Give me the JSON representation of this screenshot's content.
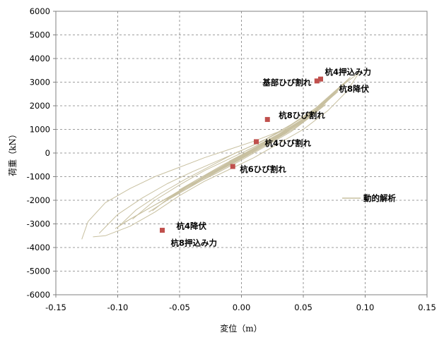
{
  "chart_data": {
    "type": "line",
    "xlabel": "変位（m）",
    "ylabel": "荷重（kN）",
    "xlim": [
      -0.15,
      0.15
    ],
    "ylim": [
      -6000,
      6000
    ],
    "x_ticks": [
      -0.15,
      -0.1,
      -0.05,
      0.0,
      0.05,
      0.1,
      0.15
    ],
    "x_tick_labels": [
      "-0.15",
      "-0.10",
      "-0.05",
      "0.00",
      "0.05",
      "0.10",
      "0.15"
    ],
    "y_ticks": [
      -6000,
      -5000,
      -4000,
      -3000,
      -2000,
      -1000,
      0,
      1000,
      2000,
      3000,
      4000,
      5000,
      6000
    ],
    "y_tick_labels": [
      "-6000",
      "-5000",
      "-4000",
      "-3000",
      "-2000",
      "-1000",
      "0",
      "1000",
      "2000",
      "3000",
      "4000",
      "5000",
      "6000"
    ],
    "grid": "dashed",
    "legend": {
      "position": "right",
      "entries": [
        {
          "label": "動的解析",
          "color": "#c8c0a0"
        }
      ]
    },
    "series": [
      {
        "name": "動的解析",
        "color": "#c8c0a0",
        "curves": [
          [
            [
              -0.129,
              -3650
            ],
            [
              -0.124,
              -2900
            ],
            [
              -0.11,
              -2100
            ],
            [
              -0.09,
              -1500
            ],
            [
              -0.07,
              -1000
            ],
            [
              -0.05,
              -600
            ],
            [
              -0.03,
              -200
            ],
            [
              -0.01,
              150
            ],
            [
              0.01,
              500
            ],
            [
              0.03,
              900
            ],
            [
              0.05,
              1500
            ],
            [
              0.065,
              2100
            ],
            [
              0.08,
              2800
            ],
            [
              0.095,
              3400
            ]
          ],
          [
            [
              0.095,
              3400
            ],
            [
              0.085,
              2600
            ],
            [
              0.07,
              1800
            ],
            [
              0.05,
              1000
            ],
            [
              0.03,
              400
            ],
            [
              0.01,
              -200
            ],
            [
              -0.01,
              -700
            ],
            [
              -0.03,
              -1200
            ],
            [
              -0.05,
              -1800
            ],
            [
              -0.07,
              -2500
            ],
            [
              -0.09,
              -3100
            ],
            [
              -0.11,
              -3500
            ],
            [
              -0.12,
              -3550
            ]
          ],
          [
            [
              -0.115,
              -3400
            ],
            [
              -0.1,
              -2600
            ],
            [
              -0.08,
              -1900
            ],
            [
              -0.06,
              -1300
            ],
            [
              -0.04,
              -800
            ],
            [
              -0.02,
              -350
            ],
            [
              0.0,
              100
            ],
            [
              0.02,
              600
            ],
            [
              0.04,
              1200
            ],
            [
              0.06,
              1900
            ],
            [
              0.075,
              2600
            ],
            [
              0.088,
              3200
            ]
          ],
          [
            [
              0.088,
              3200
            ],
            [
              0.075,
              2500
            ],
            [
              0.06,
              1700
            ],
            [
              0.04,
              900
            ],
            [
              0.02,
              300
            ],
            [
              0.0,
              -300
            ],
            [
              -0.02,
              -850
            ],
            [
              -0.045,
              -1500
            ],
            [
              -0.07,
              -2200
            ],
            [
              -0.09,
              -2800
            ],
            [
              -0.102,
              -3200
            ]
          ],
          [
            [
              -0.1,
              -3150
            ],
            [
              -0.085,
              -2400
            ],
            [
              -0.065,
              -1700
            ],
            [
              -0.045,
              -1100
            ],
            [
              -0.025,
              -550
            ],
            [
              -0.005,
              0
            ],
            [
              0.015,
              450
            ],
            [
              0.035,
              1000
            ],
            [
              0.055,
              1700
            ],
            [
              0.07,
              2300
            ],
            [
              0.082,
              2900
            ]
          ],
          [
            [
              0.082,
              2900
            ],
            [
              0.065,
              2000
            ],
            [
              0.045,
              1200
            ],
            [
              0.025,
              500
            ],
            [
              0.005,
              -100
            ],
            [
              -0.015,
              -650
            ],
            [
              -0.04,
              -1300
            ],
            [
              -0.06,
              -1900
            ],
            [
              -0.08,
              -2500
            ],
            [
              -0.095,
              -2950
            ]
          ],
          [
            [
              -0.088,
              -2800
            ],
            [
              -0.07,
              -2000
            ],
            [
              -0.05,
              -1350
            ],
            [
              -0.03,
              -750
            ],
            [
              -0.01,
              -250
            ],
            [
              0.01,
              250
            ],
            [
              0.03,
              800
            ],
            [
              0.05,
              1450
            ],
            [
              0.065,
              2000
            ],
            [
              0.078,
              2600
            ]
          ],
          [
            [
              0.078,
              2600
            ],
            [
              0.06,
              1800
            ],
            [
              0.04,
              1000
            ],
            [
              0.02,
              350
            ],
            [
              0.0,
              -250
            ],
            [
              -0.02,
              -800
            ],
            [
              -0.04,
              -1400
            ],
            [
              -0.06,
              -2000
            ],
            [
              -0.075,
              -2500
            ]
          ],
          [
            [
              -0.072,
              -2450
            ],
            [
              -0.055,
              -1750
            ],
            [
              -0.035,
              -1100
            ],
            [
              -0.015,
              -500
            ],
            [
              0.005,
              50
            ],
            [
              0.025,
              600
            ],
            [
              0.045,
              1250
            ],
            [
              0.06,
              1850
            ],
            [
              0.073,
              2400
            ]
          ],
          [
            [
              0.073,
              2400
            ],
            [
              0.055,
              1600
            ],
            [
              0.035,
              850
            ],
            [
              0.015,
              200
            ],
            [
              -0.005,
              -350
            ],
            [
              -0.025,
              -900
            ],
            [
              -0.045,
              -1500
            ],
            [
              -0.062,
              -2050
            ]
          ],
          [
            [
              -0.06,
              -2000
            ],
            [
              -0.045,
              -1450
            ],
            [
              -0.025,
              -850
            ],
            [
              -0.005,
              -300
            ],
            [
              0.015,
              250
            ],
            [
              0.035,
              850
            ],
            [
              0.052,
              1500
            ],
            [
              0.066,
              2100
            ],
            [
              0.07,
              2300
            ]
          ],
          [
            [
              0.068,
              2200
            ],
            [
              0.05,
              1400
            ],
            [
              0.03,
              700
            ],
            [
              0.01,
              100
            ],
            [
              -0.01,
              -450
            ],
            [
              -0.03,
              -1000
            ],
            [
              -0.048,
              -1550
            ],
            [
              -0.06,
              -1950
            ]
          ],
          [
            [
              -0.048,
              -1600
            ],
            [
              -0.03,
              -1050
            ],
            [
              -0.01,
              -500
            ],
            [
              0.01,
              50
            ],
            [
              0.03,
              650
            ],
            [
              0.048,
              1300
            ],
            [
              0.062,
              1850
            ]
          ],
          [
            [
              0.062,
              1850
            ],
            [
              0.045,
              1200
            ],
            [
              0.025,
              550
            ],
            [
              0.005,
              0
            ],
            [
              -0.015,
              -550
            ],
            [
              -0.035,
              -1100
            ],
            [
              -0.05,
              -1550
            ]
          ],
          [
            [
              -0.04,
              -1350
            ],
            [
              -0.02,
              -750
            ],
            [
              0.0,
              -200
            ],
            [
              0.02,
              350
            ],
            [
              0.04,
              950
            ],
            [
              0.056,
              1550
            ],
            [
              0.068,
              2050
            ]
          ],
          [
            [
              0.068,
              2050
            ],
            [
              0.05,
              1350
            ],
            [
              0.03,
              650
            ],
            [
              0.01,
              50
            ],
            [
              -0.01,
              -500
            ],
            [
              -0.03,
              -1050
            ],
            [
              -0.045,
              -1450
            ]
          ],
          [
            [
              -0.03,
              -1000
            ],
            [
              -0.012,
              -450
            ],
            [
              0.008,
              100
            ],
            [
              0.028,
              650
            ],
            [
              0.046,
              1250
            ],
            [
              0.06,
              1750
            ]
          ],
          [
            [
              0.06,
              1750
            ],
            [
              0.04,
              1050
            ],
            [
              0.02,
              400
            ],
            [
              0.0,
              -150
            ],
            [
              -0.02,
              -700
            ],
            [
              -0.035,
              -1150
            ]
          ],
          [
            [
              -0.02,
              -700
            ],
            [
              0.0,
              -150
            ],
            [
              0.02,
              400
            ],
            [
              0.038,
              950
            ],
            [
              0.052,
              1450
            ],
            [
              0.064,
              1950
            ]
          ],
          [
            [
              0.064,
              1950
            ],
            [
              0.046,
              1250
            ],
            [
              0.026,
              600
            ],
            [
              0.006,
              0
            ],
            [
              -0.012,
              -500
            ],
            [
              -0.025,
              -850
            ]
          ],
          [
            [
              -0.01,
              -350
            ],
            [
              0.01,
              200
            ],
            [
              0.03,
              750
            ],
            [
              0.045,
              1200
            ],
            [
              0.058,
              1700
            ]
          ],
          [
            [
              0.058,
              1700
            ],
            [
              0.04,
              1100
            ],
            [
              0.02,
              450
            ],
            [
              0.0,
              -100
            ],
            [
              -0.015,
              -550
            ]
          ],
          [
            [
              0.004,
              100
            ],
            [
              0.02,
              500
            ],
            [
              0.036,
              950
            ],
            [
              0.05,
              1400
            ],
            [
              0.062,
              1850
            ]
          ],
          [
            [
              0.062,
              1850
            ],
            [
              0.046,
              1300
            ],
            [
              0.028,
              700
            ],
            [
              0.01,
              200
            ],
            [
              -0.004,
              -200
            ]
          ]
        ]
      }
    ],
    "markers": [
      {
        "label": "基部ひび割れ",
        "x": 0.061,
        "y": 3050,
        "label_anchor": "end",
        "label_dx": -8,
        "label_dy": 2
      },
      {
        "label": "杭4押込み力",
        "x": 0.064,
        "y": 3130,
        "label_anchor": "start",
        "label_dx": 6,
        "label_dy": -10
      },
      {
        "label": "杭8降伏",
        "x": 0.064,
        "y": 3130,
        "label_anchor": "start",
        "label_dx": 26,
        "label_dy": 14
      },
      {
        "label": "杭8ひび割れ",
        "x": 0.021,
        "y": 1420,
        "label_anchor": "start",
        "label_dx": 16,
        "label_dy": -6
      },
      {
        "label": "杭4ひび割れ",
        "x": 0.012,
        "y": 480,
        "label_anchor": "start",
        "label_dx": 12,
        "label_dy": 2
      },
      {
        "label": "杭6ひび割れ",
        "x": -0.007,
        "y": -570,
        "label_anchor": "start",
        "label_dx": 10,
        "label_dy": 4
      },
      {
        "label": "杭4降伏",
        "x": -0.064,
        "y": -3270,
        "label_anchor": "start",
        "label_dx": 20,
        "label_dy": -6
      },
      {
        "label": "杭8押込み力",
        "x": -0.064,
        "y": -3270,
        "label_anchor": "start",
        "label_dx": 12,
        "label_dy": 18
      }
    ],
    "marker_color": "#c0504d"
  }
}
